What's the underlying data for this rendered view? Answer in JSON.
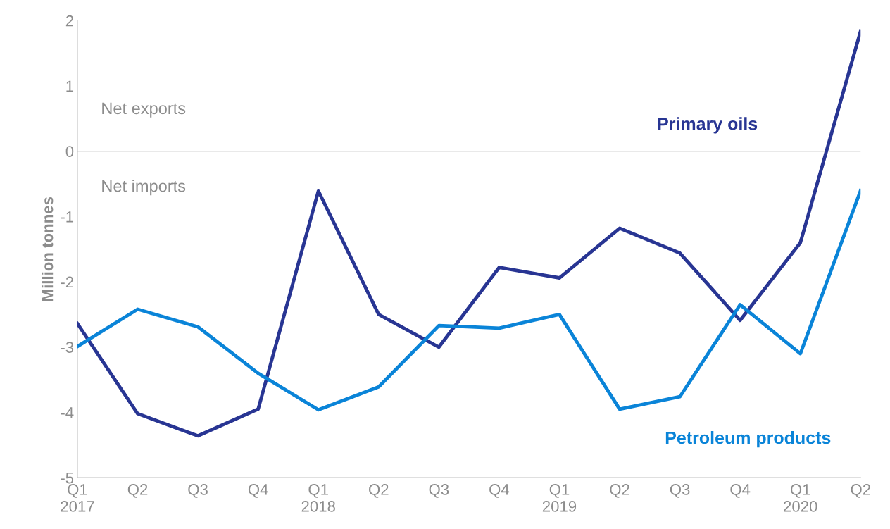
{
  "chart_data": {
    "type": "line",
    "ylabel": "Million tonnes",
    "categories": [
      "Q1\n2017",
      "Q2",
      "Q3",
      "Q4",
      "Q1\n2018",
      "Q2",
      "Q3",
      "Q4",
      "Q1\n2019",
      "Q2",
      "Q3",
      "Q4",
      "Q1\n2020",
      "Q2"
    ],
    "series": [
      {
        "name": "Primary oils",
        "color": "#283593",
        "values": [
          -2.64,
          -4.02,
          -4.36,
          -3.95,
          -0.61,
          -2.5,
          -3.0,
          -1.78,
          -1.94,
          -1.18,
          -1.56,
          -2.59,
          -1.4,
          1.84
        ]
      },
      {
        "name": "Petroleum products",
        "color": "#0a84d8",
        "values": [
          -2.99,
          -2.42,
          -2.69,
          -3.4,
          -3.96,
          -3.61,
          -2.67,
          -2.71,
          -2.5,
          -3.95,
          -3.76,
          -2.35,
          -3.1,
          -0.6
        ]
      }
    ],
    "ylim": [
      -5,
      2
    ],
    "yticks": [
      -5,
      -4,
      -3,
      -2,
      -1,
      0,
      1,
      2
    ],
    "ref_lines": [
      {
        "axis": "y",
        "value": 0,
        "color": "#a6a6a6"
      }
    ],
    "annotations": [
      "Net exports",
      "Net imports"
    ],
    "grid": false,
    "legend": false,
    "marker": "none",
    "line_style": "solid"
  }
}
